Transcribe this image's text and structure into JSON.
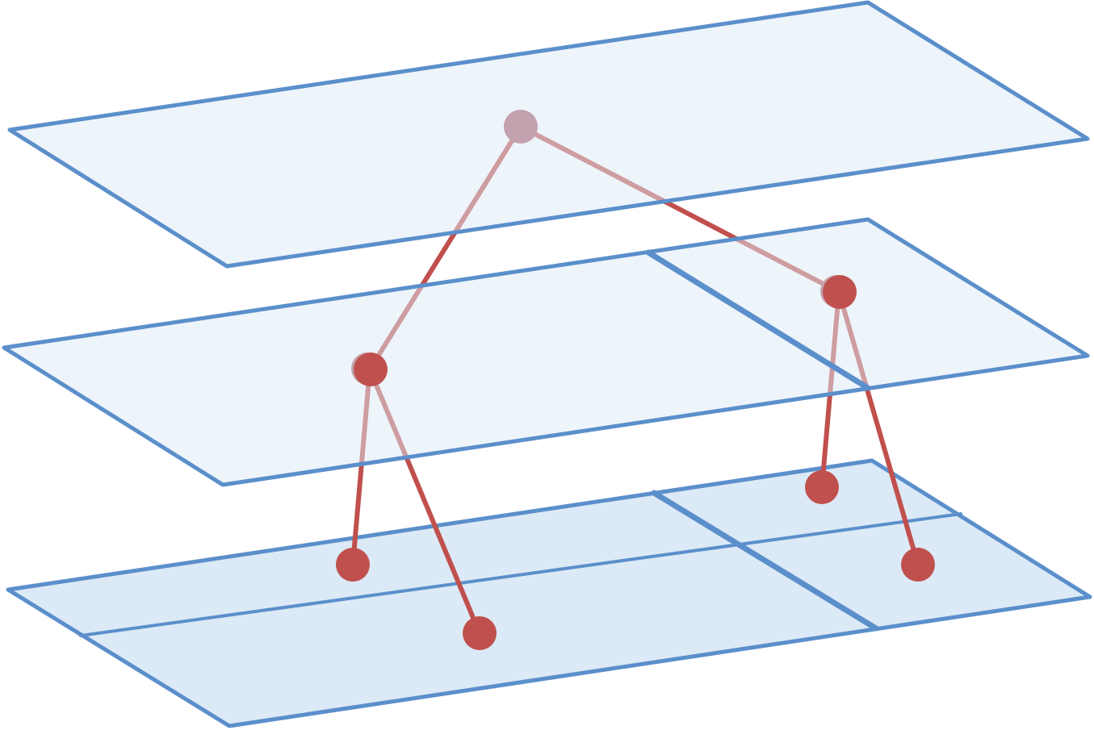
{
  "colors": {
    "plane_fill": "#dce9f6",
    "plane_stroke": "#5b8fcb",
    "node": "#c0504d",
    "node_faded": "#c3a1ae",
    "edge": "#c0504d",
    "edge_faded": "#c3a1ae"
  },
  "tree": {
    "levels": 3,
    "root_children": 2,
    "leaves_per_child": 2
  }
}
